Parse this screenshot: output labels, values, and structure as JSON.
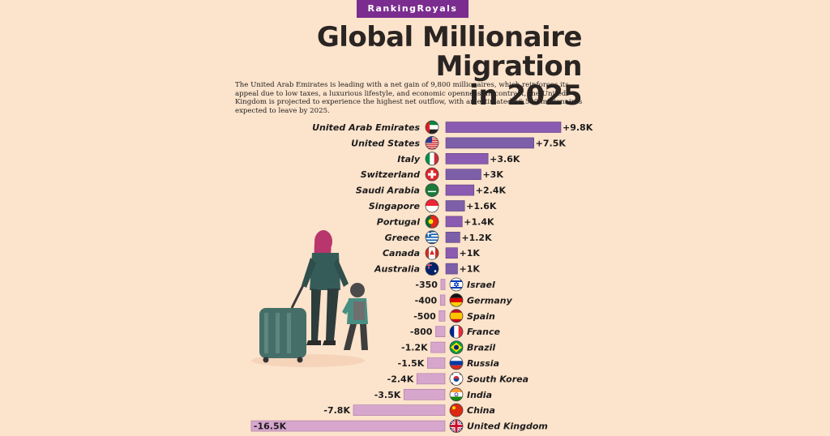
{
  "brand": "RankingRoyals",
  "title_line1": "Global Millionaire Migration",
  "title_line2": "in 2025",
  "description": "The United Arab Emirates is leading with a net gain of 9,800 millionaires, which reinforces its appeal due to low taxes, a luxurious lifestyle, and economic openness. In contrast, the United Kingdom is projected to experience the highest net outflow, with an estimated 16,500 millionaires expected to leave by 2025.",
  "colors": {
    "positive_bar": "#7c5fa8",
    "positive_bar_alt": "#8a5bb0",
    "negative_bar": "#d7a6cd",
    "background": "#fce3cc",
    "brand": "#7b2d8f"
  },
  "chart_data": {
    "type": "bar",
    "orientation": "horizontal",
    "title": "Global Millionaire Migration in 2025",
    "categories": [
      "United Arab Emirates",
      "United States",
      "Italy",
      "Switzerland",
      "Saudi Arabia",
      "Singapore",
      "Portugal",
      "Greece",
      "Canada",
      "Australia",
      "Israel",
      "Germany",
      "Spain",
      "France",
      "Brazil",
      "Russia",
      "South Korea",
      "India",
      "China",
      "United Kingdom"
    ],
    "values": [
      9800,
      7500,
      3600,
      3000,
      2400,
      1600,
      1400,
      1200,
      1000,
      1000,
      -350,
      -400,
      -500,
      -800,
      -1200,
      -1500,
      -2400,
      -3500,
      -7800,
      -16500
    ],
    "labels": [
      "+9.8K",
      "+7.5K",
      "+3.6K",
      "+3K",
      "+2.4K",
      "+1.6K",
      "+1.4K",
      "+1.2K",
      "+1K",
      "+1K",
      "-350",
      "-400",
      "-500",
      "-800",
      "-1.2K",
      "-1.5K",
      "-2.4K",
      "-3.5K",
      "-7.8K",
      "-16.5K"
    ],
    "flag_icons": [
      "uae-flag-icon",
      "usa-flag-icon",
      "italy-flag-icon",
      "switzerland-flag-icon",
      "saudi-arabia-flag-icon",
      "singapore-flag-icon",
      "portugal-flag-icon",
      "greece-flag-icon",
      "canada-flag-icon",
      "australia-flag-icon",
      "israel-flag-icon",
      "germany-flag-icon",
      "spain-flag-icon",
      "france-flag-icon",
      "brazil-flag-icon",
      "russia-flag-icon",
      "south-korea-flag-icon",
      "india-flag-icon",
      "china-flag-icon",
      "uk-flag-icon"
    ],
    "xlabel": "",
    "ylabel": "",
    "grid": false,
    "legend": "none"
  },
  "illustration": {
    "icon": "traveler-with-child-and-suitcase-icon"
  }
}
